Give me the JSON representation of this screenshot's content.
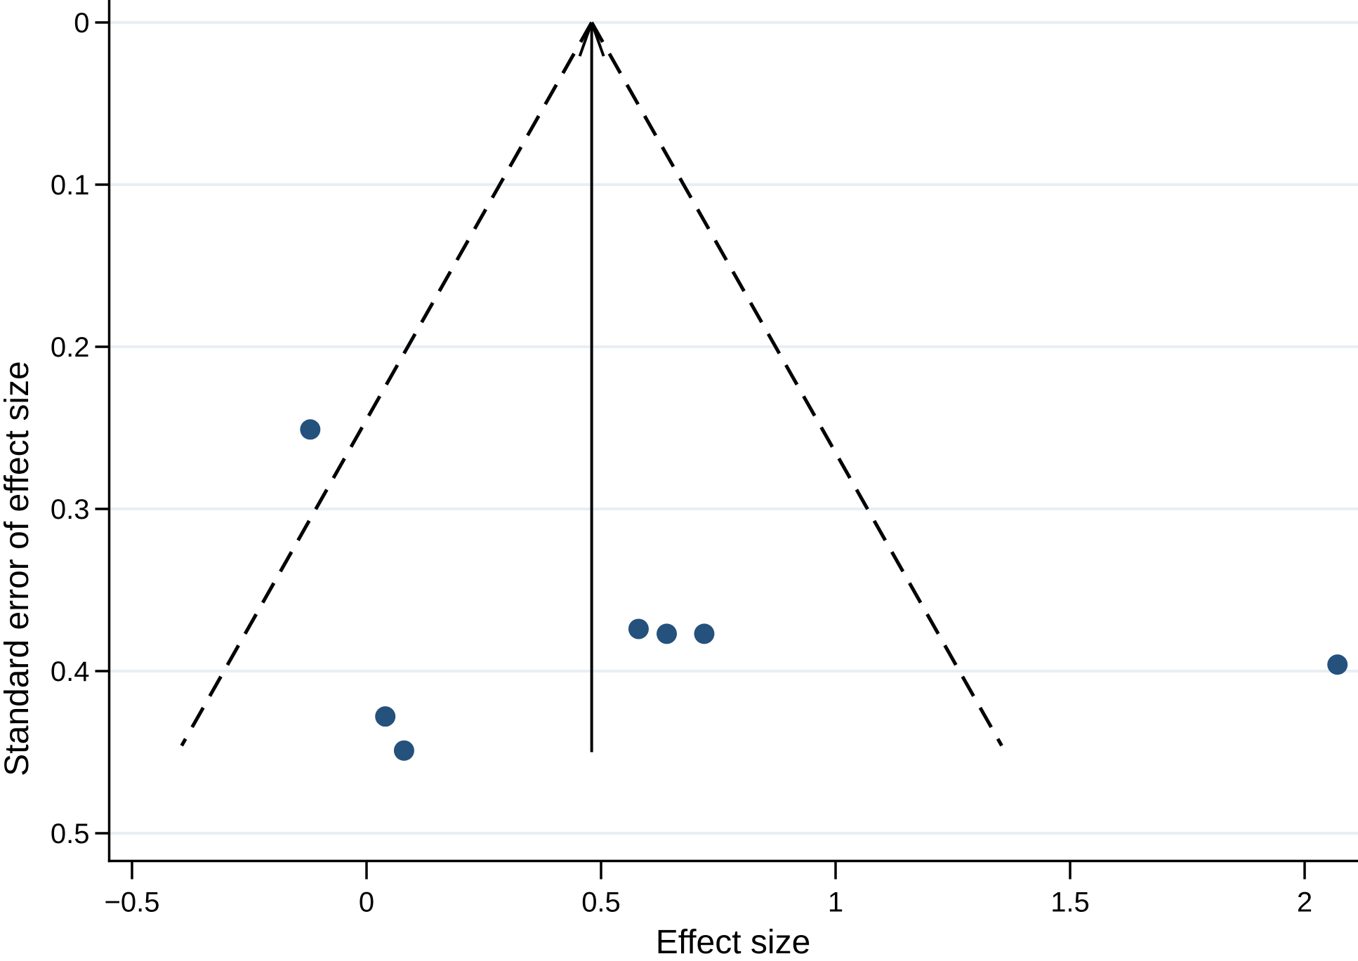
{
  "figure": {
    "title": "",
    "xlabel": "Effect size",
    "ylabel": "Standard error of effect size"
  },
  "chart_data": {
    "type": "scatter",
    "subtype": "funnel-plot",
    "title": "",
    "xlabel": "Effect size",
    "ylabel": "Standard error of effect size",
    "x_ticks": [
      -0.5,
      0,
      0.5,
      1,
      1.5,
      2
    ],
    "x_tick_labels": [
      "−0.5",
      "0",
      "0.5",
      "1",
      "1.5",
      "2"
    ],
    "y_ticks": [
      0,
      0.1,
      0.2,
      0.3,
      0.4,
      0.5
    ],
    "y_tick_labels": [
      "0",
      "0.1",
      "0.2",
      "0.3",
      "0.4",
      "0.5"
    ],
    "xlim": [
      -0.55,
      2.11
    ],
    "ylim": [
      0,
      0.517
    ],
    "y_axis_inverted": true,
    "grid": "horizontal-only",
    "legend": "none",
    "points": [
      {
        "effect_size": -0.12,
        "standard_error": 0.251
      },
      {
        "effect_size": 0.04,
        "standard_error": 0.428
      },
      {
        "effect_size": 0.08,
        "standard_error": 0.449
      },
      {
        "effect_size": 0.58,
        "standard_error": 0.374
      },
      {
        "effect_size": 0.64,
        "standard_error": 0.377
      },
      {
        "effect_size": 0.72,
        "standard_error": 0.377
      },
      {
        "effect_size": 2.07,
        "standard_error": 0.396
      }
    ],
    "pooled_effect_line": {
      "x": 0.48,
      "se_from": 0,
      "se_to": 0.45,
      "style": "solid",
      "arrow": "up"
    },
    "pseudo_confidence_funnel": {
      "apex_x": 0.48,
      "z": 1.96,
      "se_max": 0.446,
      "style": "dashed"
    },
    "colors": {
      "point": "#25517d",
      "grid": "#e8eef4",
      "line": "#000000",
      "background": "#ffffff"
    }
  }
}
